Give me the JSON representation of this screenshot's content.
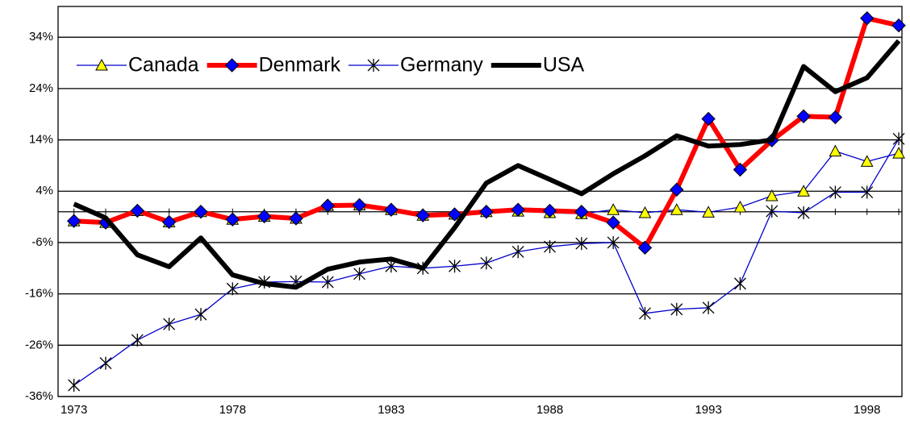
{
  "chart_data": {
    "type": "line",
    "x": [
      1973,
      1974,
      1975,
      1976,
      1977,
      1978,
      1979,
      1980,
      1981,
      1982,
      1983,
      1984,
      1985,
      1986,
      1987,
      1988,
      1989,
      1990,
      1991,
      1992,
      1993,
      1994,
      1995,
      1996,
      1997,
      1998,
      1999
    ],
    "series": [
      {
        "name": "Canada",
        "color": "#0000cc",
        "marker": "triangle",
        "marker_color": "#ffff00",
        "values": [
          -1.8,
          -2.1,
          0.2,
          -2,
          0,
          -1.5,
          -0.9,
          -1.3,
          1.2,
          1.3,
          0.4,
          -0.7,
          -0.5,
          0,
          0.1,
          -0.2,
          -0.4,
          0.4,
          -0.2,
          0.4,
          -0.1,
          0.9,
          3.1,
          4,
          11.8,
          9.8,
          11.4
        ]
      },
      {
        "name": "Denmark",
        "color": "#ff0000",
        "marker": "diamond",
        "marker_color": "#0000ff",
        "values": [
          -1.8,
          -2.1,
          0.2,
          -2,
          0,
          -1.5,
          -0.9,
          -1.3,
          1.2,
          1.3,
          0.4,
          -0.7,
          -0.5,
          0,
          0.4,
          0.2,
          0,
          -2.1,
          -7,
          4.3,
          18.1,
          8.2,
          13.9,
          18.6,
          18.4,
          37.7,
          36.3
        ]
      },
      {
        "name": "Germany",
        "color": "#0000cc",
        "marker": "star",
        "marker_color": "#000000",
        "values": [
          -33.8,
          -29.5,
          -25,
          -21.9,
          -20,
          -15,
          -13.7,
          -13.6,
          -13.7,
          -12.1,
          -10.6,
          -11,
          -10.6,
          -10,
          -7.8,
          -6.8,
          -6.2,
          -6,
          -19.8,
          -19,
          -18.7,
          -14,
          0.1,
          -0.2,
          3.8,
          3.8,
          14.2
        ]
      },
      {
        "name": "USA",
        "color": "#000000",
        "marker": "none",
        "values": [
          1.5,
          -1.2,
          -8.4,
          -10.7,
          -5.1,
          -12.3,
          -14,
          -14.7,
          -11.2,
          -9.8,
          -9.2,
          -11,
          -3.1,
          5.6,
          9,
          6.3,
          3.5,
          7.4,
          10.9,
          14.8,
          12.8,
          13.1,
          14,
          28.3,
          23.4,
          26.1,
          33.3
        ]
      }
    ],
    "xlim": [
      1972.5,
      1999.1
    ],
    "ylim": [
      -36,
      40
    ],
    "xticks": [
      1973,
      1978,
      1983,
      1988,
      1993,
      1998
    ],
    "yticks": [
      {
        "value": -36,
        "label": "-36%"
      },
      {
        "value": -26,
        "label": "-26%"
      },
      {
        "value": -16,
        "label": "-16%"
      },
      {
        "value": -6,
        "label": "-6%"
      },
      {
        "value": 4,
        "label": "4%"
      },
      {
        "value": 14,
        "label": "14%"
      },
      {
        "value": 24,
        "label": "24%"
      },
      {
        "value": 34,
        "label": "34%"
      }
    ],
    "grid": true,
    "legend": "top-left"
  }
}
